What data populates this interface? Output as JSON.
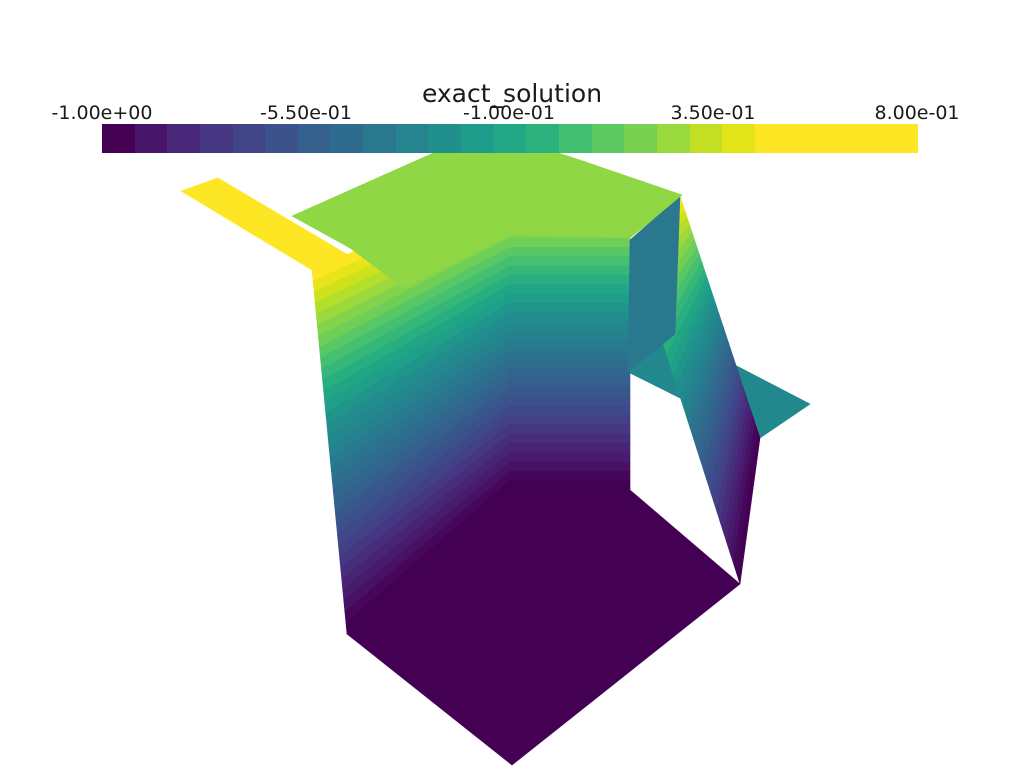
{
  "colorbar": {
    "title": "exact_solution",
    "ticks": [
      "-1.00e+00",
      "-5.50e-01",
      "-1.00e-01",
      "3.50e-01",
      "8.00e-01"
    ],
    "range": [
      -1.0,
      0.8
    ],
    "colors": [
      "#440154",
      "#471567",
      "#472777",
      "#453781",
      "#414487",
      "#3b528b",
      "#355f8d",
      "#2f6b8e",
      "#2a788e",
      "#25848e",
      "#21908d",
      "#1e9c89",
      "#22a884",
      "#2db27d",
      "#43bf71",
      "#5ec962",
      "#7ad151",
      "#9ad93c",
      "#c2df23",
      "#e3e418",
      "#fde725",
      "#fde725",
      "#fde725",
      "#fde725",
      "#fde725"
    ]
  },
  "render": {
    "palette": {
      "top": "#8fd744",
      "arm_left": "#fde725",
      "arm_right": "#21888d",
      "bottom": "#440154",
      "bands": [
        "#fde725",
        "#e7e419",
        "#cde11d",
        "#b4de2c",
        "#9bd93c",
        "#84d44b",
        "#6ece58",
        "#58c765",
        "#45bf70",
        "#35b779",
        "#29af7f",
        "#21a685",
        "#1f9e89",
        "#1f958b",
        "#218e8d",
        "#23888e",
        "#26818e",
        "#287a8e",
        "#2b738e",
        "#2e6d8e",
        "#31668e",
        "#355f8d",
        "#38588c",
        "#3c508b",
        "#3f4889",
        "#424086",
        "#453781",
        "#472e7c",
        "#482475",
        "#481b6d",
        "#471164",
        "#46075a",
        "#440154"
      ]
    }
  }
}
